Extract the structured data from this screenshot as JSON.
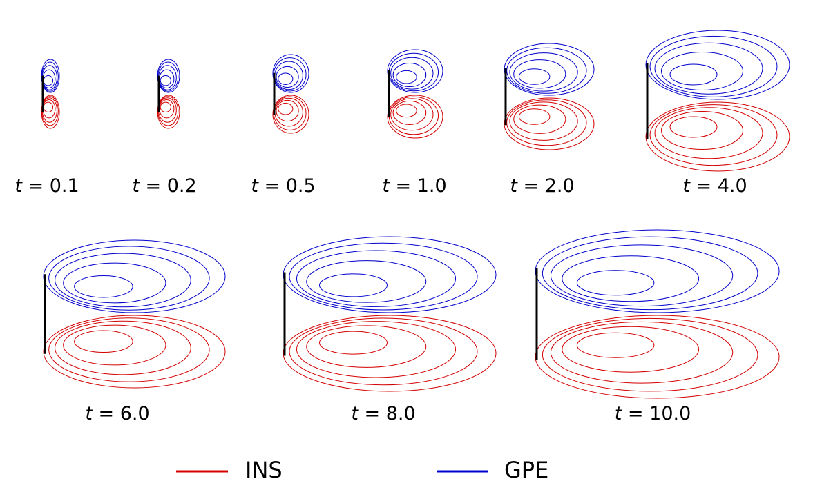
{
  "panels": [
    {
      "symbol": "t",
      "relation": "=",
      "time": "0.1"
    },
    {
      "symbol": "t",
      "relation": "=",
      "time": "0.2"
    },
    {
      "symbol": "t",
      "relation": "=",
      "time": "0.5"
    },
    {
      "symbol": "t",
      "relation": "=",
      "time": "1.0"
    },
    {
      "symbol": "t",
      "relation": "=",
      "time": "2.0"
    },
    {
      "symbol": "t",
      "relation": "=",
      "time": "4.0"
    },
    {
      "symbol": "t",
      "relation": "=",
      "time": "6.0"
    },
    {
      "symbol": "t",
      "relation": "=",
      "time": "8.0"
    },
    {
      "symbol": "t",
      "relation": "=",
      "time": "10.0"
    }
  ],
  "legend": [
    {
      "name": "INS",
      "color": "#d40000"
    },
    {
      "name": "GPE",
      "color": "#0000cc"
    }
  ]
}
